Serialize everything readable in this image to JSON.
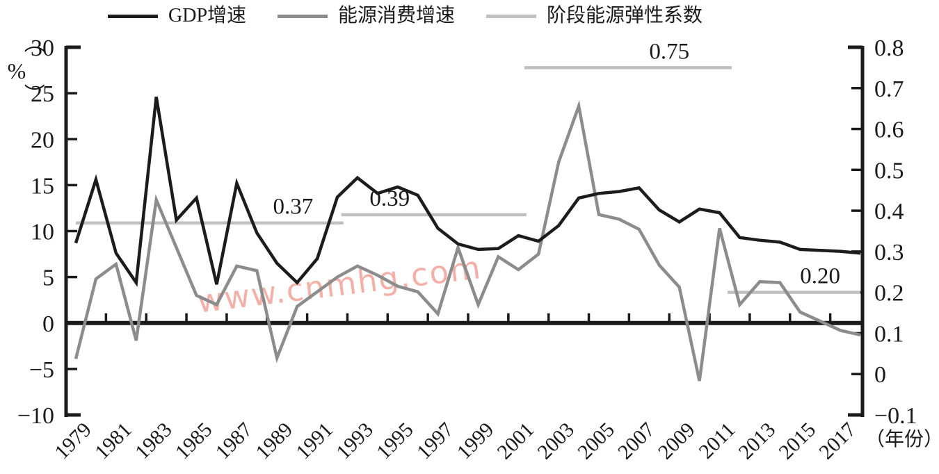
{
  "legend": {
    "items": [
      {
        "label": "GDP增速",
        "color": "#1c1c1c"
      },
      {
        "label": "能源消费增速",
        "color": "#8c8c8c"
      },
      {
        "label": "阶段能源弹性系数",
        "color": "#c0c0c0"
      }
    ]
  },
  "axes": {
    "left": {
      "unit_open": "（",
      "unit_symbol": "%",
      "unit_close": "）",
      "tick_labels": [
        "30",
        "25",
        "20",
        "15",
        "10",
        "5",
        "0",
        "−5",
        "−10"
      ],
      "tick_values": [
        30,
        25,
        20,
        15,
        10,
        5,
        0,
        -5,
        -10
      ]
    },
    "right": {
      "tick_labels": [
        "0.8",
        "0.7",
        "0.6",
        "0.5",
        "0.4",
        "0.3",
        "0.2",
        "0.1",
        "0",
        "−0.1"
      ],
      "tick_values": [
        0.8,
        0.7,
        0.6,
        0.5,
        0.4,
        0.3,
        0.2,
        0.1,
        0,
        -0.1
      ]
    },
    "x": {
      "unit": "（年份）",
      "tick_label_years": [
        1979,
        1981,
        1983,
        1985,
        1987,
        1989,
        1991,
        1993,
        1995,
        1997,
        1999,
        2001,
        2003,
        2005,
        2007,
        2009,
        2011,
        2013,
        2015,
        2017
      ]
    }
  },
  "watermark": {
    "text": "www.cnmhg.com",
    "color": "#f0968b"
  },
  "chart_data": {
    "type": "line",
    "title": "",
    "xlabel": "（年份）",
    "ylabel_left": "（%）",
    "left_ylim": [
      -10,
      30
    ],
    "right_ylim": [
      -0.1,
      0.8
    ],
    "grid": false,
    "legend_position": "top",
    "x": [
      1979,
      1980,
      1981,
      1982,
      1983,
      1984,
      1985,
      1986,
      1987,
      1988,
      1989,
      1990,
      1991,
      1992,
      1993,
      1994,
      1995,
      1996,
      1997,
      1998,
      1999,
      2000,
      2001,
      2002,
      2003,
      2004,
      2005,
      2006,
      2007,
      2008,
      2009,
      2010,
      2011,
      2012,
      2013,
      2014,
      2015,
      2016,
      2017,
      2018
    ],
    "series": [
      {
        "name": "GDP增速",
        "axis": "left",
        "color": "#1c1c1c",
        "values": [
          8.7,
          15.6,
          7.6,
          4.4,
          24.6,
          11.2,
          13.6,
          4.2,
          15.2,
          9.8,
          6.5,
          4.4,
          7.0,
          13.7,
          15.8,
          14.1,
          14.8,
          13.9,
          10.3,
          8.6,
          8.0,
          8.1,
          9.5,
          8.9,
          10.6,
          13.6,
          14.1,
          14.3,
          14.7,
          12.3,
          11.0,
          12.4,
          12.0,
          9.3,
          9.0,
          8.8,
          8.0,
          7.9,
          7.8,
          7.6
        ]
      },
      {
        "name": "能源消费增速",
        "axis": "left",
        "color": "#8c8c8c",
        "values": [
          -3.9,
          4.8,
          6.4,
          -1.9,
          13.4,
          8.2,
          3.0,
          2.0,
          6.2,
          5.7,
          -3.8,
          1.8,
          3.4,
          5.0,
          6.2,
          5.2,
          4.0,
          3.4,
          1.0,
          8.2,
          2.0,
          7.2,
          5.8,
          7.5,
          17.5,
          23.6,
          11.8,
          11.3,
          10.2,
          6.3,
          3.9,
          -6.3,
          10.3,
          2.0,
          4.5,
          4.4,
          1.2,
          0.2,
          -0.8,
          -1.3
        ]
      }
    ],
    "elasticity_segments": {
      "name": "阶段能源弹性系数",
      "axis": "right",
      "color": "#c0c0c0",
      "segments": [
        {
          "label": "0.37",
          "value": 0.37,
          "from_year": 1979.0,
          "to_year": 1992.3,
          "label_year": 1989.8
        },
        {
          "label": "0.39",
          "value": 0.39,
          "from_year": 1992.2,
          "to_year": 2001.4,
          "label_year": 1994.6
        },
        {
          "label": "0.75",
          "value": 0.75,
          "from_year": 2001.3,
          "to_year": 2011.6,
          "label_year": 2008.5
        },
        {
          "label": "0.20",
          "value": 0.2,
          "from_year": 2011.4,
          "to_year": 2018.0,
          "label_year": 2016.0
        }
      ]
    }
  }
}
